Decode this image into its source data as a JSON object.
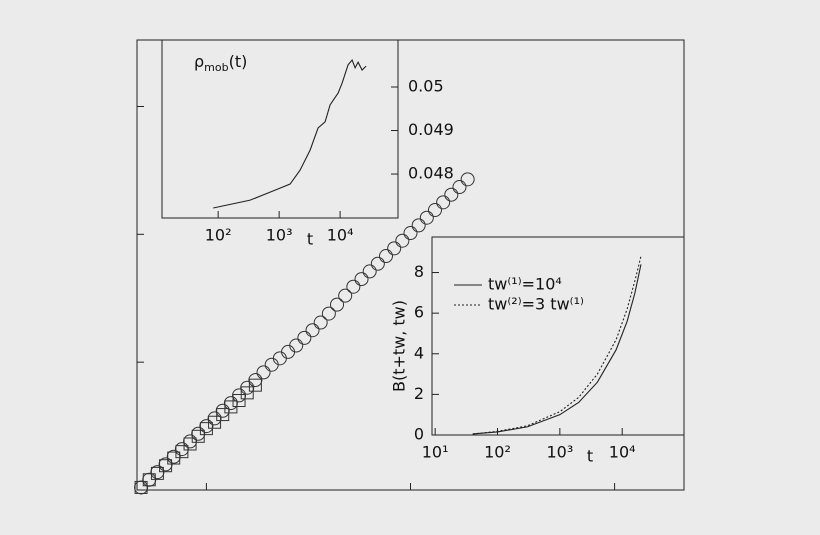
{
  "chart_data": [
    {
      "type": "scatter",
      "xlim": [
        -0.34,
        2.34
      ],
      "ylim": [
        0,
        3.52
      ],
      "xticks": [
        0,
        1,
        2
      ],
      "yticks": [
        0,
        1,
        2,
        3
      ],
      "series": [
        {
          "marker": "circle",
          "color": "#333333",
          "x": [
            -0.32,
            -0.28,
            -0.24,
            -0.2,
            -0.16,
            -0.12,
            -0.08,
            -0.04,
            0,
            0.04,
            0.08,
            0.12,
            0.16,
            0.2,
            0.24,
            0.28,
            0.32,
            0.36,
            0.4,
            0.44,
            0.48,
            0.52,
            0.56,
            0.6,
            0.64,
            0.68,
            0.72,
            0.76,
            0.8,
            0.84,
            0.88,
            0.92,
            0.96,
            1.0,
            1.04,
            1.08,
            1.12,
            1.16,
            1.2,
            1.24,
            1.28
          ],
          "values": [
            0.02,
            0.08,
            0.14,
            0.2,
            0.26,
            0.32,
            0.38,
            0.44,
            0.5,
            0.56,
            0.62,
            0.68,
            0.74,
            0.8,
            0.86,
            0.92,
            0.98,
            1.03,
            1.08,
            1.13,
            1.19,
            1.25,
            1.31,
            1.38,
            1.45,
            1.52,
            1.59,
            1.65,
            1.71,
            1.77,
            1.83,
            1.89,
            1.95,
            2.01,
            2.07,
            2.13,
            2.19,
            2.25,
            2.31,
            2.37,
            2.43
          ]
        },
        {
          "marker": "square",
          "color": "#333333",
          "x": [
            -0.32,
            -0.28,
            -0.24,
            -0.2,
            -0.16,
            -0.12,
            -0.08,
            -0.04,
            0,
            0.04,
            0.08,
            0.12,
            0.16,
            0.2,
            0.24
          ],
          "values": [
            0.02,
            0.08,
            0.13,
            0.19,
            0.25,
            0.3,
            0.36,
            0.42,
            0.48,
            0.53,
            0.59,
            0.65,
            0.7,
            0.76,
            0.82
          ]
        }
      ]
    },
    {
      "type": "line",
      "title": {
        "symbol": "ρ",
        "subscript": "mob",
        "argument": "(t)"
      },
      "xlabel": "t",
      "xscale": "log",
      "y_axis_side": "right",
      "color": "#222222",
      "xlim": [
        12,
        89000
      ],
      "ylim": [
        0.04699,
        0.05108
      ],
      "xticks": [
        {
          "value": 100,
          "label": "10²"
        },
        {
          "value": 1000,
          "label": "10³"
        },
        {
          "value": 10000,
          "label": "10⁴"
        }
      ],
      "yticks": [
        0.048,
        0.049,
        0.05
      ],
      "x": [
        83,
        335,
        860,
        1514,
        2208,
        3221,
        4355,
        5675,
        6855,
        9268,
        10790,
        13520,
        15740,
        17620,
        19730,
        22960,
        26680
      ],
      "values": [
        0.04722,
        0.0474,
        0.04763,
        0.04777,
        0.04809,
        0.04855,
        0.04906,
        0.0492,
        0.04959,
        0.04986,
        0.05009,
        0.05051,
        0.05062,
        0.05044,
        0.05057,
        0.05039,
        0.05048
      ]
    },
    {
      "type": "line",
      "xlabel": "t",
      "ylabel": "B(t+tw, tw)",
      "xscale": "log",
      "xlim": [
        8.9,
        98000
      ],
      "ylim": [
        0,
        9.75
      ],
      "xticks": [
        {
          "value": 10,
          "label": "10¹"
        },
        {
          "value": 100,
          "label": "10²"
        },
        {
          "value": 1000,
          "label": "10³"
        },
        {
          "value": 10000,
          "label": "10⁴"
        }
      ],
      "yticks": [
        0,
        2,
        4,
        6,
        8
      ],
      "x": [
        40,
        100,
        300,
        1000,
        2000,
        4000,
        8000,
        12000,
        16000,
        20000
      ],
      "series": [
        {
          "name": "tw⁽¹⁾=10⁴",
          "color": "#222222",
          "style": "solid",
          "values": [
            0.05,
            0.15,
            0.4,
            1.0,
            1.6,
            2.6,
            4.2,
            5.6,
            7.0,
            8.4
          ]
        },
        {
          "name": "tw⁽²⁾=3  tw⁽¹⁾",
          "color": "#222222",
          "style": "dotted",
          "values": [
            0.05,
            0.18,
            0.45,
            1.15,
            1.85,
            3.0,
            4.7,
            6.2,
            7.6,
            8.8
          ]
        }
      ]
    }
  ]
}
